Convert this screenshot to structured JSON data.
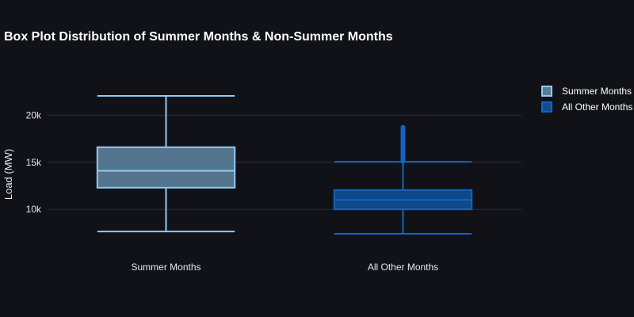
{
  "chart_data": {
    "type": "box",
    "title": "Box Plot Distribution of Summer Months & Non-Summer Months",
    "ylabel": "Load (MW)",
    "xlabel": "",
    "ylim": [
      5300,
      25500
    ],
    "yticks": [
      10000,
      15000,
      20000
    ],
    "ytick_labels": [
      "10k",
      "15k",
      "20k"
    ],
    "grid": true,
    "legend_position": "right",
    "categories": [
      "Summer Months",
      "All Other Months"
    ],
    "series": [
      {
        "name": "Summer Months",
        "color": "#8ecbf5",
        "fill": "#5a7a95",
        "min": 7650,
        "q1": 12300,
        "median": 14100,
        "q3": 16600,
        "max": 22050,
        "outliers": []
      },
      {
        "name": "All Other Months",
        "color": "#1565c0",
        "fill": "#0f4c8f",
        "min": 7400,
        "q1": 10000,
        "median": 11000,
        "q3": 12050,
        "max": 15050,
        "outliers": [
          15100,
          15250,
          15400,
          15550,
          15700,
          15850,
          16000,
          16150,
          16300,
          16450,
          16600,
          16750,
          16900,
          17050,
          17200,
          17350,
          17500,
          17650,
          17800,
          17950,
          18100,
          18250,
          18400,
          18550,
          18700
        ]
      }
    ]
  }
}
